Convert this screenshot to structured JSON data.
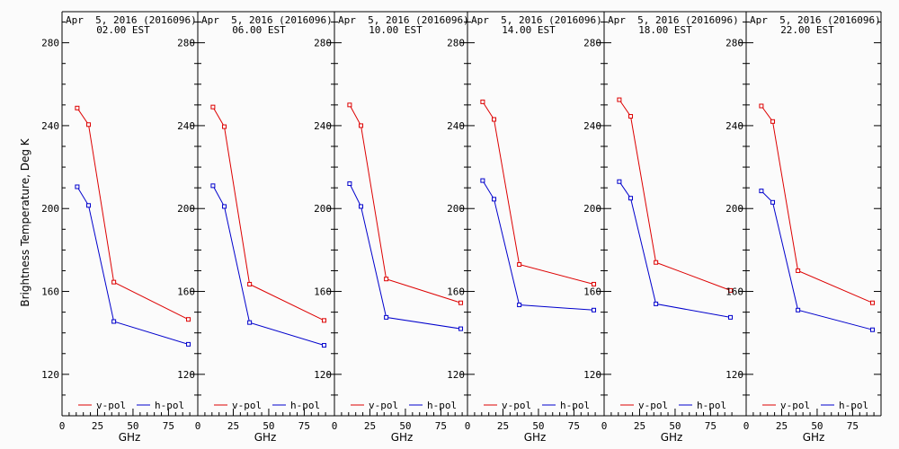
{
  "chart_data": {
    "type": "line",
    "ylabel": "Brightness Temperature, Deg K",
    "xlabel": "GHz",
    "xlim": [
      0,
      95
    ],
    "ylim": [
      100,
      295
    ],
    "xticks": [
      0,
      25,
      50,
      75
    ],
    "yticks": [
      120,
      160,
      200,
      240,
      280
    ],
    "x": [
      10.7,
      18.7,
      36.5,
      89.0
    ],
    "legend": [
      "v-pol",
      "h-pol"
    ],
    "colors": {
      "v-pol": "#dd0000",
      "h-pol": "#0000cc"
    },
    "panels": [
      {
        "title_line1": "Apr  5, 2016 (2016096)",
        "title_line2": "02.00 EST",
        "series": [
          {
            "name": "v-pol",
            "values": [
              248.5,
              240.5,
              164.5,
              146.5
            ]
          },
          {
            "name": "h-pol",
            "values": [
              210.5,
              201.5,
              145.5,
              134.5
            ]
          }
        ]
      },
      {
        "title_line1": "Apr  5, 2016 (2016096)",
        "title_line2": "06.00 EST",
        "series": [
          {
            "name": "v-pol",
            "values": [
              249.0,
              239.5,
              163.5,
              146.0
            ]
          },
          {
            "name": "h-pol",
            "values": [
              211.0,
              201.0,
              145.0,
              134.0
            ]
          }
        ]
      },
      {
        "title_line1": "Apr  5, 2016 (2016096)",
        "title_line2": "10.00 EST",
        "series": [
          {
            "name": "v-pol",
            "values": [
              250.0,
              240.0,
              166.0,
              154.5
            ]
          },
          {
            "name": "h-pol",
            "values": [
              212.0,
              201.0,
              147.5,
              142.0
            ]
          }
        ]
      },
      {
        "title_line1": "Apr  5, 2016 (2016096)",
        "title_line2": "14.00 EST",
        "series": [
          {
            "name": "v-pol",
            "values": [
              251.5,
              243.0,
              173.0,
              163.5
            ]
          },
          {
            "name": "h-pol",
            "values": [
              213.5,
              204.5,
              153.5,
              151.0
            ]
          }
        ]
      },
      {
        "title_line1": "Apr  5, 2016 (2016096)",
        "title_line2": "18.00 EST",
        "series": [
          {
            "name": "v-pol",
            "values": [
              252.5,
              244.5,
              174.0,
              160.5
            ]
          },
          {
            "name": "h-pol",
            "values": [
              213.0,
              205.0,
              154.0,
              147.5
            ]
          }
        ]
      },
      {
        "title_line1": "Apr  5, 2016 (2016096)",
        "title_line2": "22.00 EST",
        "series": [
          {
            "name": "v-pol",
            "values": [
              249.5,
              242.0,
              170.0,
              154.5
            ]
          },
          {
            "name": "h-pol",
            "values": [
              208.5,
              203.0,
              151.0,
              141.5
            ]
          }
        ]
      }
    ]
  }
}
